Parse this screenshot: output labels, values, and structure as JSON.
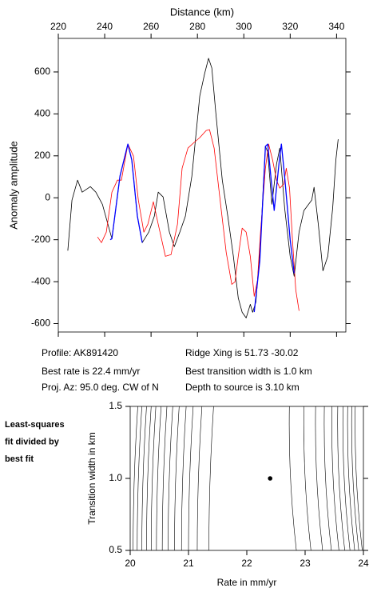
{
  "chart_data": [
    {
      "type": "line",
      "xlabel": "Distance (km)",
      "ylabel": "Anomaly amplitude",
      "xlim": [
        220,
        344
      ],
      "ylim": [
        -640,
        760
      ],
      "xticks": [
        220,
        240,
        260,
        280,
        300,
        320,
        340
      ],
      "yticks": [
        -600,
        -400,
        -200,
        0,
        200,
        400,
        600
      ],
      "series": [
        {
          "color": "#000000",
          "x": [
            224.1,
            225.9,
            228.3,
            230.3,
            233.8,
            236.2,
            239,
            241.4,
            243.1,
            246.6,
            250,
            251.7,
            254.1,
            256.2,
            259,
            261.4,
            263.1,
            265.2,
            267.9,
            270,
            272.4,
            274.8,
            277.6,
            281,
            283.1,
            284.8,
            286.2,
            287.9,
            290.7,
            293.1,
            295.5,
            297.6,
            299.3,
            301,
            302.8,
            303.8,
            305.2,
            307.2,
            309.3,
            310.3,
            312.1,
            314.1,
            315.5,
            317.6,
            320,
            321.7,
            323.8,
            325.9,
            329.3,
            330.3,
            332.1,
            334.1,
            336.2,
            338.3,
            339.7,
            340.7
          ],
          "values": [
            -252,
            -11,
            84,
            27,
            53,
            27,
            -31,
            -126,
            -195,
            103,
            256,
            180,
            -88,
            -214,
            -164,
            -88,
            27,
            4,
            -164,
            -233,
            -164,
            -88,
            103,
            485,
            592,
            665,
            619,
            409,
            84,
            -88,
            -279,
            -478,
            -546,
            -573,
            -508,
            -546,
            -497,
            -203,
            245,
            218,
            -31,
            160,
            237,
            -50,
            -279,
            -374,
            -164,
            -61,
            -11,
            50,
            -126,
            -348,
            -279,
            -50,
            180,
            279
          ]
        },
        {
          "color": "#ff0000",
          "x": [
            236.9,
            238.6,
            240.7,
            243.1,
            245.5,
            247.2,
            250,
            252.4,
            254.5,
            256.9,
            258.6,
            261,
            263.1,
            266.2,
            268.6,
            271.4,
            273.4,
            275.9,
            278.6,
            281,
            283.8,
            285.2,
            287.2,
            290,
            292.4,
            294.8,
            296.2,
            297.6,
            299.3,
            301,
            302.8,
            304.5,
            305.9,
            307.2,
            309.3,
            310.7,
            312.4,
            314.1,
            315.5,
            317.2,
            318.3,
            319.7,
            321,
            322.4,
            323.8
          ],
          "values": [
            -187,
            -214,
            -164,
            27,
            84,
            84,
            256,
            199,
            -11,
            -164,
            -126,
            -19,
            -126,
            -279,
            -271,
            -126,
            141,
            237,
            264,
            287,
            321,
            325,
            237,
            -31,
            -260,
            -413,
            -401,
            -279,
            -145,
            -164,
            -279,
            -470,
            -393,
            -164,
            141,
            256,
            180,
            84,
            46,
            65,
            141,
            46,
            -203,
            -439,
            -539
          ]
        },
        {
          "color": "#0000ff",
          "x": [
            242.4,
            243.1,
            246.6,
            250,
            251.7,
            254.1,
            256.2,
            280,
            304.5,
            306.9,
            309.3,
            310.3,
            312.1,
            313.1,
            315.5,
            316.2,
            317.6,
            320,
            321.7
          ],
          "values": [
            -200,
            -195,
            103,
            256,
            180,
            -88,
            -214,
            null,
            -545,
            -300,
            245,
            256,
            50,
            -60,
            200,
            256,
            100,
            -200,
            -360
          ]
        }
      ],
      "annotations": [
        "Profile: AK891420",
        "Best rate is 22.4 mm/yr",
        "Proj. Az: 95.0 deg. CW of N",
        "Ridge Xing is 51.73 -30.02",
        "Best transition width is 1.0 km",
        "Depth to source is   3.10 km"
      ]
    },
    {
      "type": "contour",
      "xlabel": "Rate in mm/yr",
      "ylabel": "Transition width in km",
      "xlim": [
        20,
        24
      ],
      "ylim": [
        0.5,
        1.5
      ],
      "xticks": [
        20,
        21,
        22,
        23,
        24
      ],
      "yticks": [
        0.5,
        {
          "value": 1,
          "label": "1.0"
        },
        1.5
      ],
      "annotation": [
        "Least-squares",
        "fit divided by",
        "best fit"
      ],
      "contour_y": [
        0.5,
        1.0,
        1.5
      ],
      "contours": [
        [
          20.05,
          20.07,
          20.13
        ],
        [
          20.12,
          20.14,
          20.2
        ],
        [
          20.2,
          20.22,
          20.28
        ],
        [
          20.28,
          20.3,
          20.36
        ],
        [
          20.36,
          20.38,
          20.44
        ],
        [
          20.45,
          20.47,
          20.53
        ],
        [
          20.55,
          20.57,
          20.63
        ],
        [
          20.65,
          20.67,
          20.73
        ],
        [
          20.76,
          20.78,
          20.84
        ],
        [
          20.88,
          20.9,
          20.96
        ],
        [
          21.0,
          21.02,
          21.08
        ],
        [
          21.15,
          21.17,
          21.23
        ],
        [
          21.35,
          21.37,
          21.43
        ],
        [
          22.85,
          22.75,
          22.73
        ],
        [
          23.1,
          23.0,
          22.98
        ],
        [
          23.3,
          23.2,
          23.18
        ],
        [
          23.45,
          23.35,
          23.33
        ],
        [
          23.58,
          23.48,
          23.46
        ],
        [
          23.68,
          23.58,
          23.56
        ],
        [
          23.77,
          23.67,
          23.65
        ],
        [
          23.85,
          23.75,
          23.73
        ],
        [
          23.92,
          23.82,
          23.8
        ],
        [
          23.98,
          23.88,
          23.86
        ]
      ],
      "best_point": {
        "x": 22.4,
        "y": 1.0
      }
    }
  ]
}
